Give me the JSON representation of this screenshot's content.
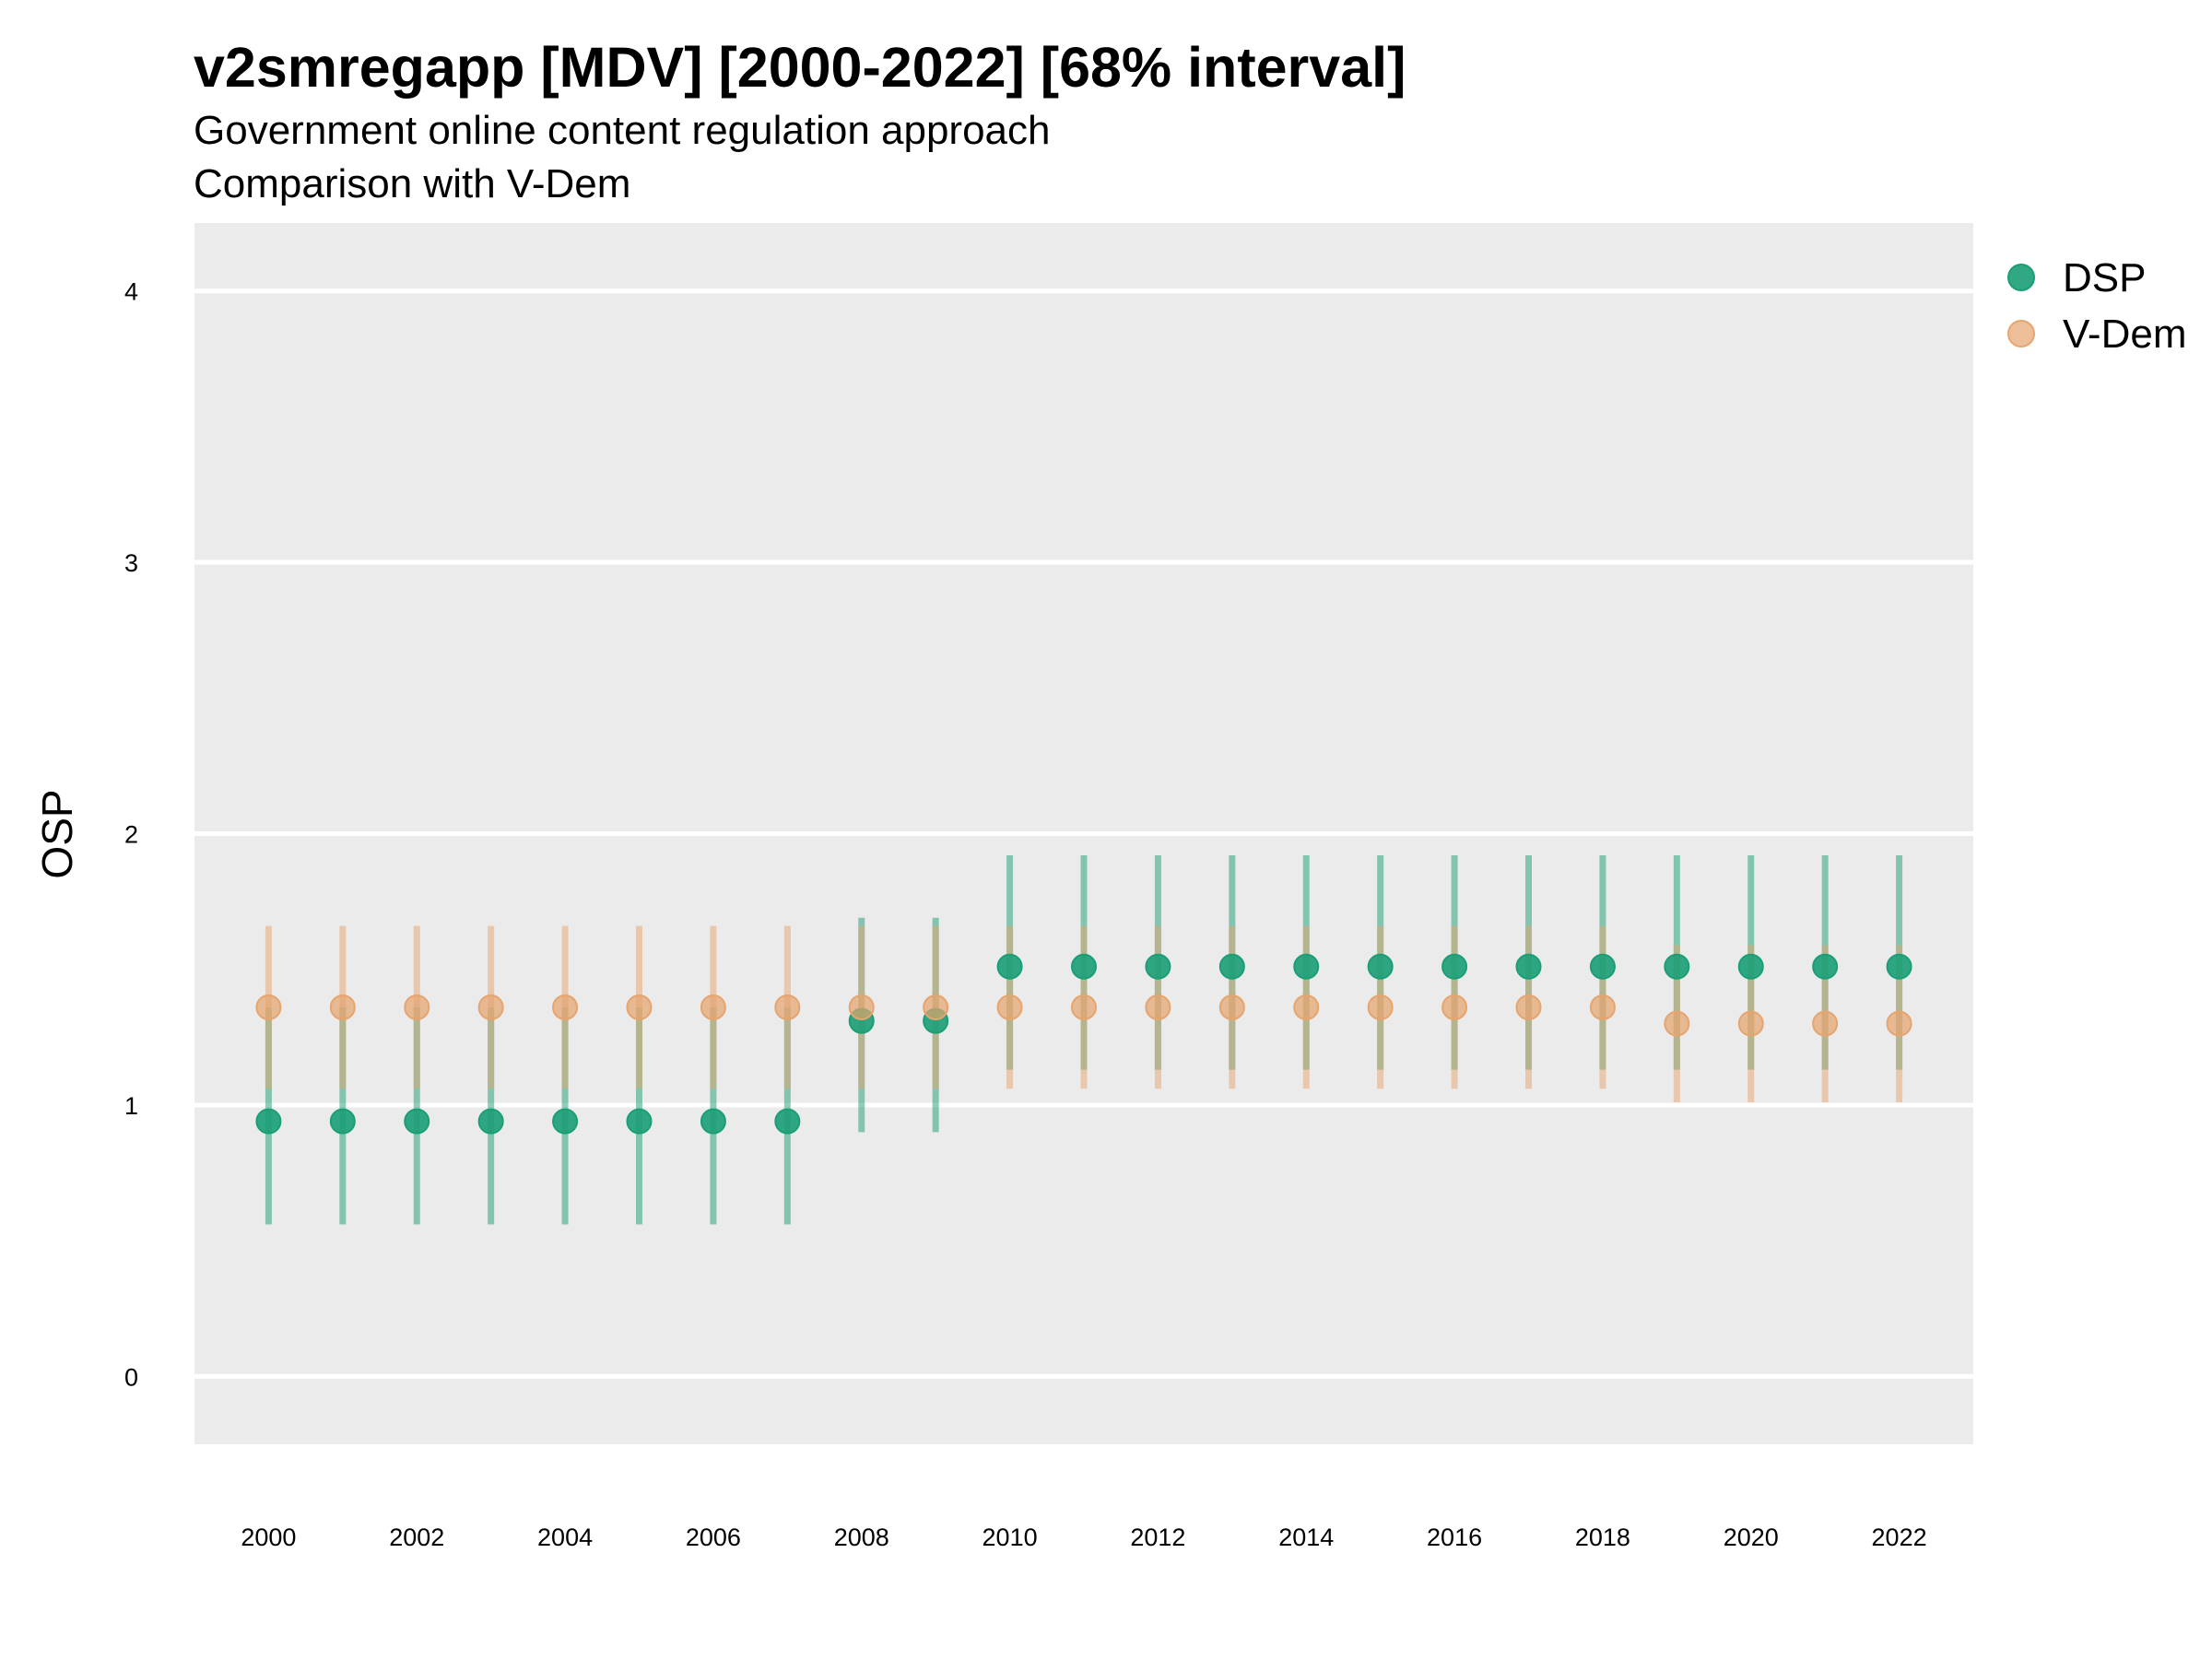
{
  "chart_data": {
    "type": "scatter",
    "title": "v2smregapp [MDV] [2000-2022] [68% interval]",
    "subtitle": "Government online content regulation approach",
    "subtitle2": "Comparison with V-Dem",
    "xlabel": "",
    "ylabel": "OSP",
    "ylim": [
      -0.25,
      4.25
    ],
    "xlim": [
      1999.0,
      2023.0
    ],
    "y_ticks": [
      0,
      1,
      2,
      3,
      4
    ],
    "x_ticks": [
      2000,
      2002,
      2004,
      2006,
      2008,
      2010,
      2012,
      2014,
      2016,
      2018,
      2020,
      2022
    ],
    "grid": true,
    "legend_position": "top-right",
    "x": [
      2000,
      2001,
      2002,
      2003,
      2004,
      2005,
      2006,
      2007,
      2008,
      2009,
      2010,
      2011,
      2012,
      2013,
      2014,
      2015,
      2016,
      2017,
      2018,
      2019,
      2020,
      2021,
      2022
    ],
    "series": [
      {
        "name": "DSP",
        "color": "#1b9e77",
        "values": [
          0.94,
          0.94,
          0.94,
          0.94,
          0.94,
          0.94,
          0.94,
          0.94,
          1.31,
          1.31,
          1.51,
          1.51,
          1.51,
          1.51,
          1.51,
          1.51,
          1.51,
          1.51,
          1.51,
          1.51,
          1.51,
          1.51,
          1.51
        ],
        "lower": [
          0.56,
          0.56,
          0.56,
          0.56,
          0.56,
          0.56,
          0.56,
          0.56,
          0.9,
          0.9,
          1.13,
          1.13,
          1.13,
          1.13,
          1.13,
          1.13,
          1.13,
          1.13,
          1.13,
          1.13,
          1.13,
          1.13,
          1.13
        ],
        "upper": [
          1.36,
          1.36,
          1.36,
          1.36,
          1.36,
          1.36,
          1.36,
          1.36,
          1.69,
          1.69,
          1.92,
          1.92,
          1.92,
          1.92,
          1.92,
          1.92,
          1.92,
          1.92,
          1.92,
          1.92,
          1.92,
          1.92,
          1.92
        ]
      },
      {
        "name": "V-Dem",
        "color": "#e6a46e",
        "values": [
          1.36,
          1.36,
          1.36,
          1.36,
          1.36,
          1.36,
          1.36,
          1.36,
          1.36,
          1.36,
          1.36,
          1.36,
          1.36,
          1.36,
          1.36,
          1.36,
          1.36,
          1.36,
          1.36,
          1.3,
          1.3,
          1.3,
          1.3
        ],
        "lower": [
          1.06,
          1.06,
          1.06,
          1.06,
          1.06,
          1.06,
          1.06,
          1.06,
          1.06,
          1.06,
          1.06,
          1.06,
          1.06,
          1.06,
          1.06,
          1.06,
          1.06,
          1.06,
          1.06,
          1.01,
          1.01,
          1.01,
          1.01
        ],
        "upper": [
          1.66,
          1.66,
          1.66,
          1.66,
          1.66,
          1.66,
          1.66,
          1.66,
          1.66,
          1.66,
          1.66,
          1.66,
          1.66,
          1.66,
          1.66,
          1.66,
          1.66,
          1.66,
          1.66,
          1.59,
          1.59,
          1.59,
          1.59
        ]
      }
    ]
  }
}
